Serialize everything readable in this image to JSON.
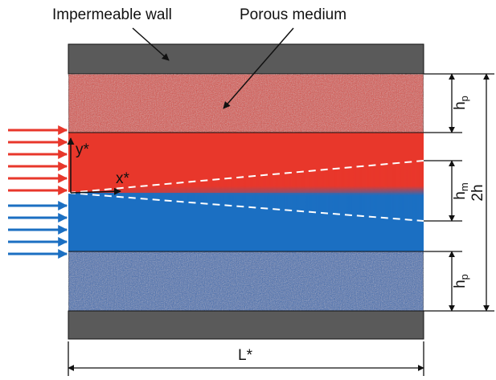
{
  "labels": {
    "impermeable_wall": "Impermeable wall",
    "porous_medium": "Porous medium"
  },
  "axes": {
    "y": "y*",
    "x": "x*"
  },
  "dimensions": {
    "top_porous": {
      "main": "h",
      "sub": "p"
    },
    "mixing": {
      "main": "h",
      "sub": "m"
    },
    "bottom_porous": {
      "main": "h",
      "sub": "p"
    },
    "half_height": "2h",
    "length": "L*"
  }
}
